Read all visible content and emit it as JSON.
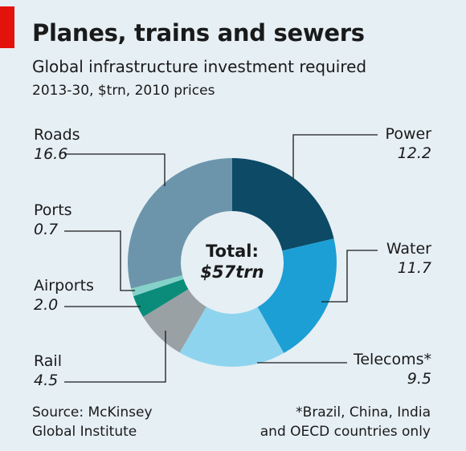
{
  "header": {
    "title": "Planes, trains and sewers",
    "subtitle": "Global infrastructure investment required",
    "units": "2013-30, $trn, 2010 prices"
  },
  "center": {
    "label": "Total:",
    "value": "$57trn"
  },
  "footer": {
    "source_line1": "Source: McKinsey",
    "source_line2": "Global Institute",
    "note_line1": "*Brazil, China, India",
    "note_line2": "and OECD countries only"
  },
  "chart_data": {
    "type": "pie",
    "donut": true,
    "title": "Planes, trains and sewers",
    "subtitle": "Global infrastructure investment required",
    "units": "2013-30, $trn, 2010 prices",
    "total": "$57trn",
    "slices": [
      {
        "name": "Power",
        "label": "Power",
        "value": 12.2,
        "display": "12.2",
        "color": "#0c4a66"
      },
      {
        "name": "Water",
        "label": "Water",
        "value": 11.7,
        "display": "11.7",
        "color": "#1c9fd4"
      },
      {
        "name": "Telecoms",
        "label": "Telecoms*",
        "value": 9.5,
        "display": "9.5",
        "color": "#8fd4ef"
      },
      {
        "name": "Rail",
        "label": "Rail",
        "value": 4.5,
        "display": "4.5",
        "color": "#9aa1a5"
      },
      {
        "name": "Airports",
        "label": "Airports",
        "value": 2.0,
        "display": "2.0",
        "color": "#0b8c7a"
      },
      {
        "name": "Ports",
        "label": "Ports",
        "value": 0.7,
        "display": "0.7",
        "color": "#84d2c9"
      },
      {
        "name": "Roads",
        "label": "Roads",
        "value": 16.6,
        "display": "16.6",
        "color": "#6c95ab"
      }
    ]
  }
}
